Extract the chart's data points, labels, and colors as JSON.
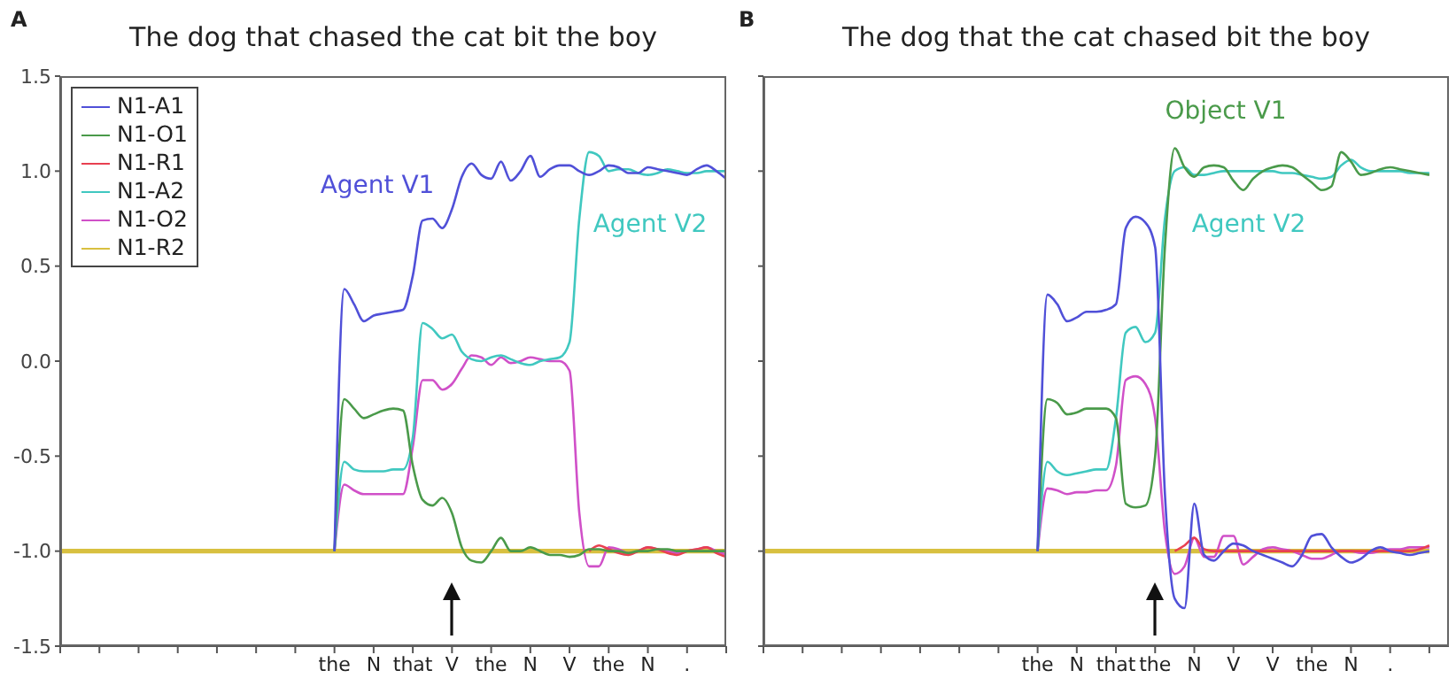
{
  "chart_data": [
    {
      "type": "line",
      "title": "The dog that chased the cat bit the boy",
      "annotations": [
        "A",
        "Agent V1",
        "Agent V2"
      ],
      "categories": [
        null,
        null,
        null,
        null,
        null,
        null,
        null,
        null,
        null,
        null,
        null,
        null,
        null,
        null,
        null,
        null,
        null,
        null,
        null,
        null,
        null,
        null,
        null,
        null,
        null,
        null,
        null,
        null,
        "the",
        null,
        null,
        null,
        "N",
        null,
        null,
        null,
        "that",
        null,
        null,
        null,
        "V",
        null,
        null,
        null,
        "the",
        null,
        null,
        null,
        "N",
        null,
        null,
        null,
        "V",
        null,
        null,
        null,
        "the",
        null,
        null,
        null,
        "N",
        null,
        null,
        null,
        ".",
        null,
        null,
        null,
        null
      ],
      "ylim": [
        -1.5,
        1.5
      ],
      "yticks": [
        {
          "value": -1.5,
          "label": "-1.5"
        },
        {
          "value": -1,
          "label": "-1.0"
        },
        {
          "value": -0.5,
          "label": "-0.5"
        },
        {
          "value": 0,
          "label": "0.0"
        },
        {
          "value": 0.5,
          "label": "0.5"
        },
        {
          "value": 1,
          "label": "1.0"
        },
        {
          "value": 1.5,
          "label": "1.5"
        }
      ],
      "grid": false,
      "legend": "top left",
      "line_style": "solid",
      "series": [
        {
          "name": "N1-A1",
          "color": "#5050d8",
          "values": [
            null,
            null,
            null,
            null,
            null,
            null,
            null,
            null,
            null,
            null,
            null,
            null,
            null,
            null,
            null,
            null,
            null,
            null,
            null,
            null,
            null,
            null,
            null,
            null,
            null,
            null,
            null,
            null,
            -1,
            0.38,
            0.3,
            0.21,
            0.24,
            0.25,
            0.26,
            0.27,
            0.45,
            0.74,
            0.75,
            0.7,
            0.8,
            0.97,
            1.04,
            0.98,
            0.96,
            1.05,
            0.95,
            1.0,
            1.08,
            0.97,
            1.01,
            1.03,
            1.03,
            1.0,
            0.98,
            1.0,
            1.03,
            1.02,
            0.99,
            0.99,
            1.02,
            1.01,
            1.0,
            0.99,
            0.98,
            1.01,
            1.03,
            1.0,
            0.96
          ]
        },
        {
          "name": "N1-O1",
          "color": "#4a9a4a",
          "values": [
            null,
            null,
            null,
            null,
            null,
            null,
            null,
            null,
            null,
            null,
            null,
            null,
            null,
            null,
            null,
            null,
            null,
            null,
            null,
            null,
            null,
            null,
            null,
            null,
            null,
            null,
            null,
            null,
            -1,
            -0.2,
            -0.25,
            -0.3,
            -0.28,
            -0.26,
            -0.25,
            -0.26,
            -0.55,
            -0.73,
            -0.76,
            -0.72,
            -0.8,
            -0.98,
            -1.05,
            -1.06,
            -1.0,
            -0.93,
            -1.0,
            -1.0,
            -0.98,
            -1.0,
            -1.02,
            -1.02,
            -1.03,
            -1.02,
            -0.99,
            -0.99,
            -1.0,
            -1.0,
            -1.01,
            -1.0,
            -1.0,
            -0.99,
            -0.99,
            -1.0,
            -1.0,
            -1.0,
            -1.0,
            -1.0,
            -1.0
          ]
        },
        {
          "name": "N1-R1",
          "color": "#e84050",
          "values": [
            null,
            null,
            null,
            null,
            null,
            null,
            null,
            null,
            null,
            null,
            null,
            null,
            null,
            null,
            null,
            null,
            null,
            null,
            null,
            null,
            null,
            null,
            null,
            null,
            null,
            null,
            null,
            null,
            null,
            null,
            null,
            null,
            null,
            null,
            null,
            null,
            null,
            null,
            null,
            null,
            null,
            null,
            null,
            null,
            null,
            null,
            null,
            null,
            null,
            null,
            null,
            null,
            null,
            null,
            -1.0,
            -0.97,
            -0.99,
            -1.01,
            -1.02,
            -1.0,
            -0.98,
            -0.99,
            -1.01,
            -1.02,
            -1.0,
            -0.99,
            -0.98,
            -1.01,
            -1.03
          ]
        },
        {
          "name": "N1-A2",
          "color": "#40c8c0",
          "values": [
            null,
            null,
            null,
            null,
            null,
            null,
            null,
            null,
            null,
            null,
            null,
            null,
            null,
            null,
            null,
            null,
            null,
            null,
            null,
            null,
            null,
            null,
            null,
            null,
            null,
            null,
            null,
            null,
            -1,
            -0.53,
            -0.57,
            -0.58,
            -0.58,
            -0.58,
            -0.57,
            -0.57,
            -0.4,
            0.2,
            0.17,
            0.12,
            0.14,
            0.05,
            0.01,
            0.0,
            0.02,
            0.03,
            0.01,
            -0.01,
            -0.02,
            0.0,
            0.01,
            0.02,
            0.1,
            0.75,
            1.1,
            1.08,
            1.0,
            1.01,
            1.01,
            0.99,
            0.98,
            0.99,
            1.01,
            1.0,
            0.99,
            0.99,
            1.0,
            1.0,
            1.0
          ]
        },
        {
          "name": "N1-O2",
          "color": "#d050c8",
          "values": [
            null,
            null,
            null,
            null,
            null,
            null,
            null,
            null,
            null,
            null,
            null,
            null,
            null,
            null,
            null,
            null,
            null,
            null,
            null,
            null,
            null,
            null,
            null,
            null,
            null,
            null,
            null,
            null,
            -1,
            -0.65,
            -0.68,
            -0.7,
            -0.7,
            -0.7,
            -0.7,
            -0.7,
            -0.45,
            -0.1,
            -0.1,
            -0.15,
            -0.12,
            -0.04,
            0.03,
            0.02,
            -0.02,
            0.02,
            -0.01,
            0.0,
            0.02,
            0.01,
            0.0,
            0.0,
            -0.05,
            -0.8,
            -1.08,
            -1.08,
            -0.98,
            -0.99,
            -1.01,
            -1.0,
            -0.98,
            -0.99,
            -1.0,
            -1.01,
            -1.0,
            -0.99,
            -0.98,
            -1.0,
            -1.02
          ]
        },
        {
          "name": "N1-R2",
          "color": "#d8c040",
          "values": [
            -1,
            -1,
            -1,
            -1,
            -1,
            -1,
            -1,
            -1,
            -1,
            -1,
            -1,
            -1,
            -1,
            -1,
            -1,
            -1,
            -1,
            -1,
            -1,
            -1,
            -1,
            -1,
            -1,
            -1,
            -1,
            -1,
            -1,
            -1,
            -1,
            -1,
            -1,
            -1,
            -1,
            -1,
            -1,
            -1,
            -1,
            -1,
            -1,
            -1,
            -1,
            -1,
            -1,
            -1,
            -1,
            -1,
            -1,
            -1,
            -1,
            -1,
            -1,
            -1,
            -1,
            -1,
            -1,
            -1,
            -1,
            -1,
            -1,
            -1,
            -1,
            -1,
            -1,
            -1,
            -1,
            -1,
            -1,
            -1,
            -1
          ]
        }
      ]
    },
    {
      "type": "line",
      "title": "The dog that the cat chased bit the boy",
      "annotations": [
        "B",
        "Object V1",
        "Agent V2"
      ],
      "categories": [
        null,
        null,
        null,
        null,
        null,
        null,
        null,
        null,
        null,
        null,
        null,
        null,
        null,
        null,
        null,
        null,
        null,
        null,
        null,
        null,
        null,
        null,
        null,
        null,
        null,
        null,
        null,
        null,
        "the",
        null,
        null,
        null,
        "N",
        null,
        null,
        null,
        "that",
        null,
        null,
        null,
        "the",
        null,
        null,
        null,
        "N",
        null,
        null,
        null,
        "V",
        null,
        null,
        null,
        "V",
        null,
        null,
        null,
        "the",
        null,
        null,
        null,
        "N",
        null,
        null,
        null,
        ".",
        null,
        null,
        null,
        null,
        null,
        null
      ],
      "ylim": [
        -1.5,
        1.5
      ],
      "yticks": [
        -1.5,
        -1,
        -0.5,
        0,
        0.5,
        1,
        1.5
      ],
      "tick_labels": "x",
      "grid": false,
      "line_style": "solid",
      "series": [
        {
          "color": "#5050d8",
          "values": [
            null,
            null,
            null,
            null,
            null,
            null,
            null,
            null,
            null,
            null,
            null,
            null,
            null,
            null,
            null,
            null,
            null,
            null,
            null,
            null,
            null,
            null,
            null,
            null,
            null,
            null,
            null,
            null,
            -1,
            0.35,
            0.3,
            0.21,
            0.23,
            0.26,
            0.26,
            0.27,
            0.3,
            0.7,
            0.76,
            0.73,
            0.6,
            -0.7,
            -1.25,
            -1.3,
            -0.75,
            -1.02,
            -1.05,
            -1.0,
            -0.96,
            -0.97,
            -1.0,
            -1.02,
            -1.04,
            -1.06,
            -1.08,
            -1.02,
            -0.92,
            -0.91,
            -0.98,
            -1.03,
            -1.06,
            -1.04,
            -1.0,
            -0.98,
            -1.0,
            -1.01,
            -1.02,
            -1.01,
            -1.0,
            null,
            null
          ]
        },
        {
          "color": "#4a9a4a",
          "values": [
            null,
            null,
            null,
            null,
            null,
            null,
            null,
            null,
            null,
            null,
            null,
            null,
            null,
            null,
            null,
            null,
            null,
            null,
            null,
            null,
            null,
            null,
            null,
            null,
            null,
            null,
            null,
            null,
            -1,
            -0.2,
            -0.22,
            -0.28,
            -0.27,
            -0.25,
            -0.25,
            -0.25,
            -0.3,
            -0.75,
            -0.77,
            -0.76,
            -0.5,
            0.6,
            1.12,
            1.02,
            0.97,
            1.02,
            1.03,
            1.02,
            0.95,
            0.9,
            0.96,
            1.0,
            1.02,
            1.03,
            1.02,
            0.98,
            0.94,
            0.9,
            0.92,
            1.1,
            1.05,
            0.98,
            0.99,
            1.01,
            1.02,
            1.01,
            1.0,
            0.99,
            0.98,
            null,
            null
          ]
        },
        {
          "color": "#e84050",
          "values": [
            null,
            null,
            null,
            null,
            null,
            null,
            null,
            null,
            null,
            null,
            null,
            null,
            null,
            null,
            null,
            null,
            null,
            null,
            null,
            null,
            null,
            null,
            null,
            null,
            null,
            null,
            null,
            null,
            null,
            null,
            null,
            null,
            null,
            null,
            null,
            null,
            null,
            null,
            null,
            null,
            null,
            null,
            -1,
            -0.97,
            -0.93,
            -0.99,
            -1,
            -1,
            -1,
            -1,
            -1,
            -1,
            -1,
            -1,
            -1,
            -1,
            -1,
            -1,
            -1,
            -1,
            -1,
            -1,
            -1,
            -1,
            -1,
            -1,
            -1,
            -0.99,
            -0.97,
            null,
            null
          ]
        },
        {
          "color": "#40c8c0",
          "values": [
            null,
            null,
            null,
            null,
            null,
            null,
            null,
            null,
            null,
            null,
            null,
            null,
            null,
            null,
            null,
            null,
            null,
            null,
            null,
            null,
            null,
            null,
            null,
            null,
            null,
            null,
            null,
            null,
            -1,
            -0.53,
            -0.58,
            -0.6,
            -0.59,
            -0.58,
            -0.57,
            -0.57,
            -0.3,
            0.15,
            0.18,
            0.1,
            0.15,
            0.75,
            1.0,
            1.02,
            0.98,
            0.98,
            0.99,
            1.0,
            1.0,
            1.0,
            1.0,
            1.0,
            1.0,
            0.99,
            0.99,
            0.98,
            0.97,
            0.96,
            0.97,
            1.03,
            1.06,
            1.02,
            1.0,
            1.0,
            1.0,
            1.0,
            0.99,
            0.99,
            0.99,
            null,
            null
          ]
        },
        {
          "color": "#d050c8",
          "values": [
            null,
            null,
            null,
            null,
            null,
            null,
            null,
            null,
            null,
            null,
            null,
            null,
            null,
            null,
            null,
            null,
            null,
            null,
            null,
            null,
            null,
            null,
            null,
            null,
            null,
            null,
            null,
            null,
            -1,
            -0.67,
            -0.68,
            -0.7,
            -0.69,
            -0.69,
            -0.68,
            -0.68,
            -0.55,
            -0.1,
            -0.08,
            -0.12,
            -0.3,
            -0.9,
            -1.12,
            -1.08,
            -0.93,
            -1.03,
            -1.03,
            -0.92,
            -0.92,
            -1.07,
            -1.03,
            -0.99,
            -0.98,
            -0.99,
            -1.0,
            -1.02,
            -1.04,
            -1.04,
            -1.02,
            -1.0,
            -1.0,
            -1.01,
            -1.01,
            -1.0,
            -0.99,
            -0.99,
            -0.98,
            -0.98,
            -0.98,
            null,
            null
          ]
        },
        {
          "color": "#d8c040",
          "values": [
            -1,
            -1,
            -1,
            -1,
            -1,
            -1,
            -1,
            -1,
            -1,
            -1,
            -1,
            -1,
            -1,
            -1,
            -1,
            -1,
            -1,
            -1,
            -1,
            -1,
            -1,
            -1,
            -1,
            -1,
            -1,
            -1,
            -1,
            -1,
            -1,
            -1,
            -1,
            -1,
            -1,
            -1,
            -1,
            -1,
            -1,
            -1,
            -1,
            -1,
            -1,
            -1,
            -1,
            -1,
            -1,
            -1,
            -1,
            -1,
            -1,
            -1,
            -1,
            -1,
            -1,
            -1,
            -1,
            -1,
            -1,
            -1,
            -1,
            -1,
            -1,
            -1,
            -1,
            -1,
            -1,
            -1,
            -1,
            -1,
            -1,
            null,
            null
          ]
        }
      ]
    }
  ]
}
